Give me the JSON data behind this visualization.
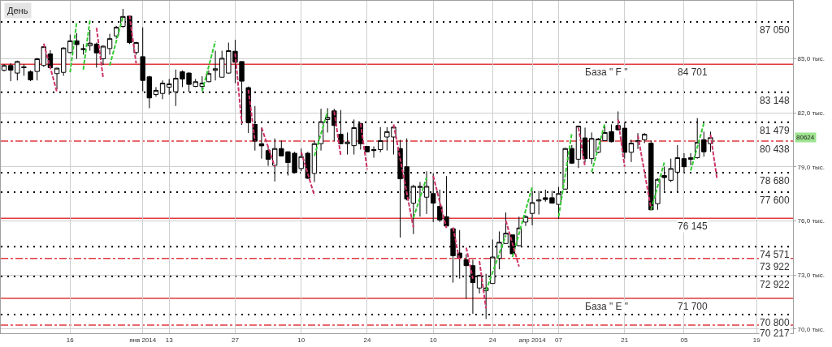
{
  "chart_data": {
    "type": "candlestick",
    "title": "День",
    "categories": [
      null,
      null,
      null,
      null,
      null,
      null,
      null,
      null,
      null,
      null,
      "16",
      null,
      null,
      null,
      null,
      null,
      null,
      null,
      null,
      null,
      null,
      "янв 2014",
      null,
      null,
      null,
      "13",
      null,
      null,
      null,
      null,
      null,
      null,
      null,
      null,
      null,
      "27",
      null,
      null,
      null,
      null,
      null,
      null,
      null,
      null,
      null,
      "10",
      null,
      null,
      null,
      null,
      null,
      null,
      null,
      null,
      null,
      "24",
      null,
      null,
      null,
      null,
      null,
      null,
      null,
      null,
      null,
      "10",
      null,
      null,
      null,
      null,
      null,
      null,
      null,
      null,
      "24",
      null,
      null,
      null,
      null,
      null,
      "апр 2014",
      null,
      null,
      null,
      "07",
      null,
      null,
      null,
      null,
      null,
      null,
      null,
      null,
      null,
      "21",
      null,
      null,
      null,
      null,
      null,
      null,
      null,
      null,
      "05",
      null,
      null,
      null,
      null,
      null,
      null,
      null,
      null,
      null,
      null,
      "19",
      null,
      null,
      null,
      null,
      null
    ],
    "series": [
      {
        "type": "line",
        "color": "#33cc33",
        "line_style": "dashed",
        "values": [
          null,
          null,
          null,
          null,
          null,
          null,
          null,
          null,
          null,
          null,
          84.25,
          87.05,
          null,
          null,
          null,
          null,
          84.63,
          85.99,
          87.35,
          null,
          null,
          null,
          null,
          null,
          null,
          null,
          null,
          null,
          null,
          null,
          83.2,
          84.59,
          85.97,
          null,
          null,
          null,
          null,
          null,
          null,
          null,
          null,
          null,
          null,
          null,
          null,
          null,
          null,
          79.61,
          80.85,
          82.08,
          null,
          null,
          null,
          null,
          null,
          null,
          null,
          null,
          null,
          null,
          null,
          null,
          76.17,
          77.29,
          78.41,
          null,
          null,
          null,
          null,
          null,
          null,
          null,
          null,
          72.13,
          73.15,
          74.18,
          75.2,
          null,
          null,
          null,
          null,
          null,
          null,
          null,
          76.24,
          78.56,
          80.88,
          null,
          null,
          78.71,
          80.06,
          81.41,
          null,
          null,
          null,
          null,
          null,
          null,
          76.62,
          77.93,
          79.24,
          null,
          null,
          null,
          78.79,
          80.1,
          81.41,
          null,
          null,
          null,
          null,
          null,
          null,
          null,
          null,
          null,
          null,
          null,
          null,
          null
        ]
      },
      {
        "type": "line",
        "color": "#33cc33",
        "line_style": "dashed",
        "values": [
          null,
          null,
          null,
          null,
          null,
          null,
          null,
          null,
          null,
          null,
          null,
          null,
          84.4,
          87.14,
          null,
          null,
          null,
          null,
          null,
          null,
          null,
          null,
          null,
          null,
          null,
          null,
          null,
          null,
          null,
          null,
          null,
          null,
          null,
          null,
          null,
          null,
          null,
          null,
          null,
          null,
          null,
          null,
          null,
          null,
          null,
          null,
          null,
          null,
          null,
          null,
          null,
          null,
          null,
          null,
          null,
          null,
          null,
          null,
          null,
          null,
          null,
          null,
          null,
          null,
          null,
          null,
          null,
          null,
          null,
          null,
          null,
          null,
          null,
          null,
          null,
          null,
          null,
          74.0,
          75.3,
          76.59,
          77.89,
          null,
          null,
          null,
          null,
          null,
          null,
          null,
          null,
          null,
          null,
          null,
          null,
          null,
          null,
          null,
          null,
          null,
          null,
          null,
          null,
          null,
          null,
          null,
          null,
          null,
          null,
          null,
          null,
          null,
          null,
          null,
          null,
          null,
          null,
          null,
          null,
          null,
          null,
          null
        ]
      },
      {
        "type": "line",
        "color": "#cc3366",
        "line_style": "dashed",
        "values": [
          null,
          null,
          null,
          null,
          null,
          null,
          85.85,
          84.51,
          83.16,
          null,
          null,
          null,
          null,
          null,
          86.72,
          83.95,
          null,
          null,
          null,
          87.4,
          84.75,
          null,
          null,
          null,
          null,
          null,
          null,
          null,
          null,
          null,
          null,
          null,
          null,
          null,
          null,
          85.3,
          81.41,
          null,
          null,
          81.18,
          80.1,
          79.01,
          null,
          null,
          null,
          79.84,
          78.63,
          77.41,
          null,
          null,
          82.08,
          79.61,
          null,
          null,
          81.41,
          78.86,
          null,
          null,
          null,
          81.36,
          79.45,
          77.55,
          75.64,
          null,
          null,
          78.5,
          77.06,
          75.61,
          null,
          null,
          74.52,
          72.8,
          null,
          null,
          null,
          null,
          76.02,
          74.75,
          73.47,
          null,
          null,
          null,
          null,
          null,
          null,
          null,
          null,
          81.18,
          79.01,
          null,
          null,
          null,
          null,
          81.63,
          79.01,
          null,
          80.75,
          78.72,
          76.69,
          null,
          null,
          null,
          null,
          null,
          null,
          null,
          null,
          80.8,
          78.31,
          null,
          null,
          null,
          null,
          null,
          null,
          null,
          null,
          null,
          null,
          null
        ]
      },
      {
        "type": "line",
        "color": "#cc3366",
        "line_style": "dashed",
        "values": [
          null,
          null,
          null,
          null,
          null,
          null,
          null,
          null,
          null,
          null,
          null,
          null,
          null,
          null,
          null,
          null,
          null,
          null,
          null,
          null,
          null,
          null,
          null,
          null,
          null,
          null,
          null,
          null,
          null,
          null,
          null,
          null,
          null,
          null,
          null,
          null,
          null,
          83.28,
          80.43,
          null,
          null,
          null,
          null,
          null,
          null,
          null,
          null,
          null,
          null,
          null,
          null,
          null,
          null,
          null,
          null,
          null,
          null,
          null,
          null,
          null,
          null,
          null,
          null,
          null,
          null,
          null,
          null,
          null,
          75.64,
          73.77,
          null,
          null,
          73.77,
          71.15,
          null,
          null,
          null,
          null,
          null,
          null,
          null,
          null,
          null,
          null,
          null,
          null,
          null,
          null,
          null,
          null,
          null,
          null,
          null,
          null,
          null,
          null,
          null,
          null,
          null,
          null,
          null,
          null,
          null,
          null,
          null,
          null,
          null,
          null,
          null,
          null,
          null,
          null,
          null,
          null,
          null,
          null,
          null,
          null,
          null,
          null
        ]
      },
      {
        "color": "#000000",
        "ohlc": [
          [
            84.36,
            84.7,
            84.3,
            84.63
          ],
          [
            84.63,
            84.75,
            83.76,
            84.37
          ],
          [
            84.21,
            84.9,
            83.8,
            84.85
          ],
          [
            84.55,
            84.7,
            84.06,
            84.51
          ],
          [
            84.28,
            84.36,
            83.76,
            83.83
          ],
          [
            84.3,
            85.05,
            83.8,
            85.0
          ],
          [
            84.63,
            85.7,
            84.55,
            85.67
          ],
          [
            85.27,
            85.48,
            84.48,
            84.51
          ],
          [
            84.18,
            84.51,
            83.31,
            84.48
          ],
          [
            84.25,
            85.64,
            84.06,
            85.6
          ],
          [
            85.35,
            86.35,
            85.3,
            86.0
          ],
          [
            86.0,
            86.42,
            85.0,
            85.79
          ],
          [
            85.57,
            85.82,
            85.23,
            85.52
          ],
          [
            85.72,
            86.6,
            85.45,
            85.87
          ],
          [
            85.82,
            85.9,
            84.51,
            85.33
          ],
          [
            85.0,
            85.75,
            84.66,
            85.7
          ],
          [
            85.57,
            86.39,
            85.23,
            86.12
          ],
          [
            86.27,
            86.83,
            86.12,
            86.75
          ],
          [
            86.8,
            87.77,
            86.72,
            87.35
          ],
          [
            87.37,
            87.4,
            85.82,
            85.9
          ],
          [
            85.35,
            85.94,
            85.23,
            85.9
          ],
          [
            85.12,
            86.75,
            83.2,
            83.8
          ],
          [
            84.0,
            84.06,
            82.26,
            82.83
          ],
          [
            83.02,
            83.43,
            82.9,
            83.25
          ],
          [
            83.08,
            83.8,
            82.76,
            83.65
          ],
          [
            83.43,
            83.88,
            83.01,
            83.61
          ],
          [
            83.17,
            84.4,
            82.38,
            83.92
          ],
          [
            84.28,
            84.36,
            83.43,
            83.88
          ],
          [
            84.21,
            84.25,
            83.16,
            83.58
          ],
          [
            83.47,
            83.88,
            83.43,
            83.73
          ],
          [
            83.47,
            84.03,
            83.28,
            83.65
          ],
          [
            83.73,
            84.36,
            83.7,
            84.18
          ],
          [
            84.36,
            85.45,
            83.8,
            84.45
          ],
          [
            83.98,
            85.45,
            83.98,
            85.03
          ],
          [
            84.21,
            85.9,
            84.18,
            85.45
          ],
          [
            85.42,
            86.05,
            83.65,
            84.81
          ],
          [
            84.85,
            84.85,
            81.33,
            83.76
          ],
          [
            83.4,
            83.46,
            80.88,
            81.45
          ],
          [
            81.36,
            82.38,
            79.91,
            80.43
          ],
          [
            80.29,
            81.18,
            79.46,
            80.17
          ],
          [
            79.91,
            80.06,
            79.06,
            79.42
          ],
          [
            79.09,
            80.58,
            78.19,
            80.02
          ],
          [
            80.02,
            80.46,
            79.61,
            79.61
          ],
          [
            79.84,
            79.87,
            78.52,
            79.24
          ],
          [
            79.76,
            79.84,
            78.64,
            78.68
          ],
          [
            78.91,
            80.02,
            78.76,
            79.57
          ],
          [
            79.76,
            79.84,
            78.34,
            78.37
          ],
          [
            78.64,
            80.43,
            78.16,
            80.29
          ],
          [
            80.29,
            82.23,
            79.91,
            81.51
          ],
          [
            81.63,
            82.26,
            80.91,
            81.75
          ],
          [
            82.11,
            82.23,
            80.43,
            81.3
          ],
          [
            80.81,
            82.16,
            80.26,
            80.29
          ],
          [
            80.29,
            80.91,
            79.69,
            80.38
          ],
          [
            80.18,
            81.63,
            79.69,
            81.18
          ],
          [
            81.41,
            81.45,
            79.96,
            80.29
          ],
          [
            80.14,
            80.14,
            79.81,
            79.84
          ],
          [
            79.96,
            80.14,
            79.51,
            79.91
          ],
          [
            79.96,
            81.21,
            79.81,
            80.46
          ],
          [
            80.66,
            81.21,
            79.91,
            80.96
          ],
          [
            80.66,
            81.33,
            79.69,
            81.21
          ],
          [
            80.02,
            80.5,
            75.08,
            78.34
          ],
          [
            79.01,
            80.58,
            77.14,
            77.22
          ],
          [
            76.99,
            78.01,
            75.27,
            77.92
          ],
          [
            77.86,
            78.16,
            76.24,
            77.92
          ],
          [
            77.32,
            78.76,
            76.39,
            77.92
          ],
          [
            77.52,
            78.64,
            75.94,
            76.99
          ],
          [
            76.81,
            77.74,
            75.94,
            76.06
          ],
          [
            76.24,
            78.49,
            75.64,
            75.72
          ],
          [
            75.57,
            75.57,
            72.58,
            74.07
          ],
          [
            74.22,
            75.49,
            72.8,
            73.97
          ],
          [
            73.85,
            74.15,
            71.68,
            73.52
          ],
          [
            73.52,
            73.85,
            70.85,
            72.58
          ],
          [
            72.28,
            73.02,
            71.98,
            72.98
          ],
          [
            72.13,
            73.07,
            70.56,
            72.28
          ],
          [
            72.53,
            74.97,
            72.53,
            74.0
          ],
          [
            73.92,
            75.42,
            73.32,
            74.82
          ],
          [
            74.75,
            76.47,
            74.75,
            75.32
          ],
          [
            75.23,
            75.23,
            74.15,
            74.18
          ],
          [
            74.63,
            76.24,
            74.6,
            75.61
          ],
          [
            75.94,
            76.32,
            75.72,
            76.24
          ],
          [
            76.42,
            77.67,
            75.76,
            77.02
          ],
          [
            77.11,
            77.67,
            76.36,
            77.17
          ],
          [
            77.29,
            77.74,
            77.07,
            77.19
          ],
          [
            77.29,
            77.67,
            76.96,
            76.99
          ],
          [
            76.92,
            77.89,
            76.12,
            77.52
          ],
          [
            77.77,
            80.06,
            77.74,
            80.02
          ],
          [
            80.02,
            80.21,
            79.16,
            79.21
          ],
          [
            79.43,
            81.3,
            78.94,
            81.26
          ],
          [
            80.61,
            81.18,
            79.24,
            79.46
          ],
          [
            79.46,
            80.91,
            79.16,
            80.58
          ],
          [
            79.81,
            80.61,
            79.76,
            80.55
          ],
          [
            80.46,
            81.26,
            80.43,
            80.91
          ],
          [
            80.96,
            81.36,
            80.36,
            80.4
          ],
          [
            81.3,
            82.08,
            81.03,
            81.06
          ],
          [
            81.15,
            81.48,
            79.46,
            79.81
          ],
          [
            79.81,
            80.51,
            79.27,
            80.32
          ],
          [
            80.4,
            80.88,
            79.99,
            80.46
          ],
          [
            80.51,
            80.88,
            80.32,
            80.81
          ],
          [
            80.32,
            80.46,
            76.6,
            76.62
          ],
          [
            76.96,
            78.37,
            76.62,
            78.31
          ],
          [
            78.52,
            79.01,
            77.67,
            78.41
          ],
          [
            78.26,
            79.46,
            78.16,
            78.91
          ],
          [
            78.71,
            80.21,
            77.56,
            79.51
          ],
          [
            79.46,
            79.76,
            78.64,
            79.01
          ],
          [
            79.42,
            79.76,
            79.09,
            79.51
          ],
          [
            79.51,
            81.71,
            79.46,
            80.36
          ],
          [
            80.51,
            80.96,
            79.57,
            79.84
          ],
          [
            80.29,
            80.96,
            79.84,
            80.624
          ],
          null,
          null,
          null,
          null,
          null,
          null,
          null,
          null,
          null,
          null,
          null,
          null
        ]
      }
    ],
    "ylim": [
      69.77,
      88.22
    ],
    "yticks": [
      {
        "value": 70,
        "label": "70,0 тыс."
      },
      {
        "value": 73,
        "label": "73,0 тыс."
      },
      {
        "value": 76,
        "label": "76,0 тыс."
      },
      {
        "value": 79,
        "label": "79,0 тыс."
      },
      {
        "value": 82,
        "label": "82,0 тыс."
      },
      {
        "value": 85,
        "label": "85,0 тыс."
      }
    ],
    "grid": true,
    "ref_lines": [
      {
        "axis": "y",
        "value": 87.05,
        "label": "87 050",
        "color": "#000000",
        "line_style": "dotted"
      },
      {
        "axis": "y",
        "value": 84.701,
        "label": "84 701",
        "color": "#e0393e",
        "line_style": "solid"
      },
      {
        "axis": "y",
        "value": 83.148,
        "label": "83 148",
        "color": "#000000",
        "line_style": "dotted"
      },
      {
        "axis": "y",
        "value": 81.479,
        "label": "81 479",
        "color": "#000000",
        "line_style": "dotted"
      },
      {
        "axis": "y",
        "value": 80.438,
        "label": "80 438",
        "color": "#e0393e",
        "line_style": "dashed"
      },
      {
        "axis": "y",
        "value": 78.68,
        "label": "78 680",
        "color": "#000000",
        "line_style": "dotted"
      },
      {
        "axis": "y",
        "value": 77.6,
        "label": "77 600",
        "color": "#000000",
        "line_style": "dotted"
      },
      {
        "axis": "y",
        "value": 76.145,
        "label": "76 145",
        "color": "#e0393e",
        "line_style": "solid"
      },
      {
        "axis": "y",
        "value": 74.571,
        "label": "74 571",
        "color": "#000000",
        "line_style": "dotted"
      },
      {
        "axis": "y",
        "value": 73.922,
        "label": "73 922",
        "color": "#e0393e",
        "line_style": "dashed"
      },
      {
        "axis": "y",
        "value": 72.922,
        "label": "72 922",
        "color": "#000000",
        "line_style": "dotted"
      },
      {
        "axis": "y",
        "value": 71.7,
        "label": "71 700",
        "color": "#e0393e",
        "line_style": "solid"
      },
      {
        "axis": "y",
        "value": 70.8,
        "label": "70 800",
        "color": "#000000",
        "line_style": "dotted"
      },
      {
        "axis": "y",
        "value": 70.217,
        "label": "70 217",
        "color": "#e0393e",
        "line_style": "dashed"
      }
    ],
    "annotations": [
      {
        "text": "База \" F \"",
        "y": 84.701
      },
      {
        "text": "База \" E \"",
        "y": 71.7
      },
      {
        "text": "80624",
        "y": 80.624
      }
    ]
  }
}
